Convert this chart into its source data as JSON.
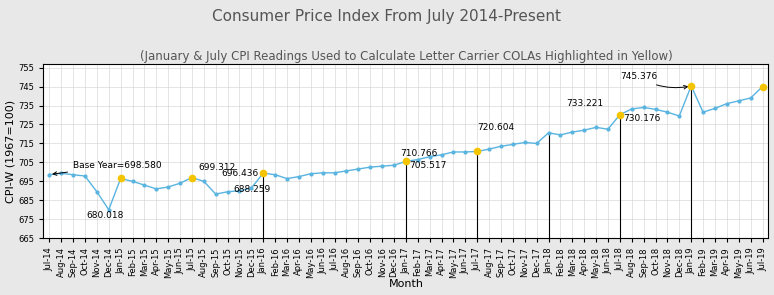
{
  "title": "Consumer Price Index From July 2014-Present",
  "subtitle": "(January & July CPI Readings Used to Calculate Letter Carrier COLAs Highlighted in Yellow)",
  "xlabel": "Month",
  "ylabel": "CPI-W (1967=100)",
  "ylim": [
    665,
    757
  ],
  "yticks": [
    665,
    675,
    685,
    695,
    705,
    715,
    725,
    735,
    745,
    755
  ],
  "background_color": "#e8e8e8",
  "plot_bg_color": "#ffffff",
  "line_color": "#5ab4e0",
  "marker_color_normal": "#5ab4e0",
  "marker_color_highlight": "#f5c400",
  "months": [
    "Jul-14",
    "Aug-14",
    "Sep-14",
    "Oct-14",
    "Nov-14",
    "Dec-14",
    "Jan-15",
    "Feb-15",
    "Mar-15",
    "Apr-15",
    "May-15",
    "Jun-15",
    "Jul-15",
    "Aug-15",
    "Sep-15",
    "Oct-15",
    "Nov-15",
    "Dec-15",
    "Jan-16",
    "Feb-16",
    "Mar-16",
    "Apr-16",
    "May-16",
    "Jun-16",
    "Jul-16",
    "Aug-16",
    "Sep-16",
    "Oct-16",
    "Nov-16",
    "Dec-16",
    "Jan-17",
    "Feb-17",
    "Mar-17",
    "Apr-17",
    "May-17",
    "Jun-17",
    "Jul-17",
    "Aug-17",
    "Sep-17",
    "Oct-17",
    "Nov-17",
    "Dec-17",
    "Jan-18",
    "Feb-18",
    "Mar-18",
    "Apr-18",
    "May-18",
    "Jun-18",
    "Jul-18",
    "Aug-18",
    "Sep-18",
    "Oct-18",
    "Nov-18",
    "Dec-18",
    "Jan-19",
    "Feb-19",
    "Mar-19",
    "Apr-19",
    "May-19",
    "Jun-19",
    "Jul-19"
  ],
  "actual_values": [
    698.58,
    699.2,
    698.5,
    697.8,
    689.5,
    680.018,
    696.5,
    695.0,
    693.0,
    691.0,
    692.0,
    694.0,
    697.0,
    695.0,
    688.259,
    689.5,
    690.0,
    691.5,
    699.312,
    698.5,
    696.436,
    697.5,
    699.0,
    699.5,
    699.5,
    700.5,
    701.5,
    702.5,
    703.0,
    703.5,
    705.517,
    706.5,
    708.0,
    709.0,
    710.5,
    710.5,
    710.766,
    712.0,
    713.5,
    714.5,
    715.5,
    715.0,
    720.604,
    719.5,
    721.0,
    722.0,
    723.5,
    722.5,
    730.176,
    733.221,
    734.0,
    733.0,
    731.5,
    729.5,
    745.376,
    731.5,
    733.5,
    736.0,
    737.5,
    739.0,
    745.0
  ],
  "highlighted_indices": [
    6,
    12,
    18,
    30,
    36,
    48,
    54,
    60
  ],
  "vlines": [
    18,
    30,
    36,
    42,
    48,
    54
  ],
  "title_fontsize": 11,
  "subtitle_fontsize": 8.5,
  "axis_label_fontsize": 8,
  "tick_fontsize": 6,
  "ann_fontsize": 6.5,
  "grid_color": "#d0d0d0"
}
